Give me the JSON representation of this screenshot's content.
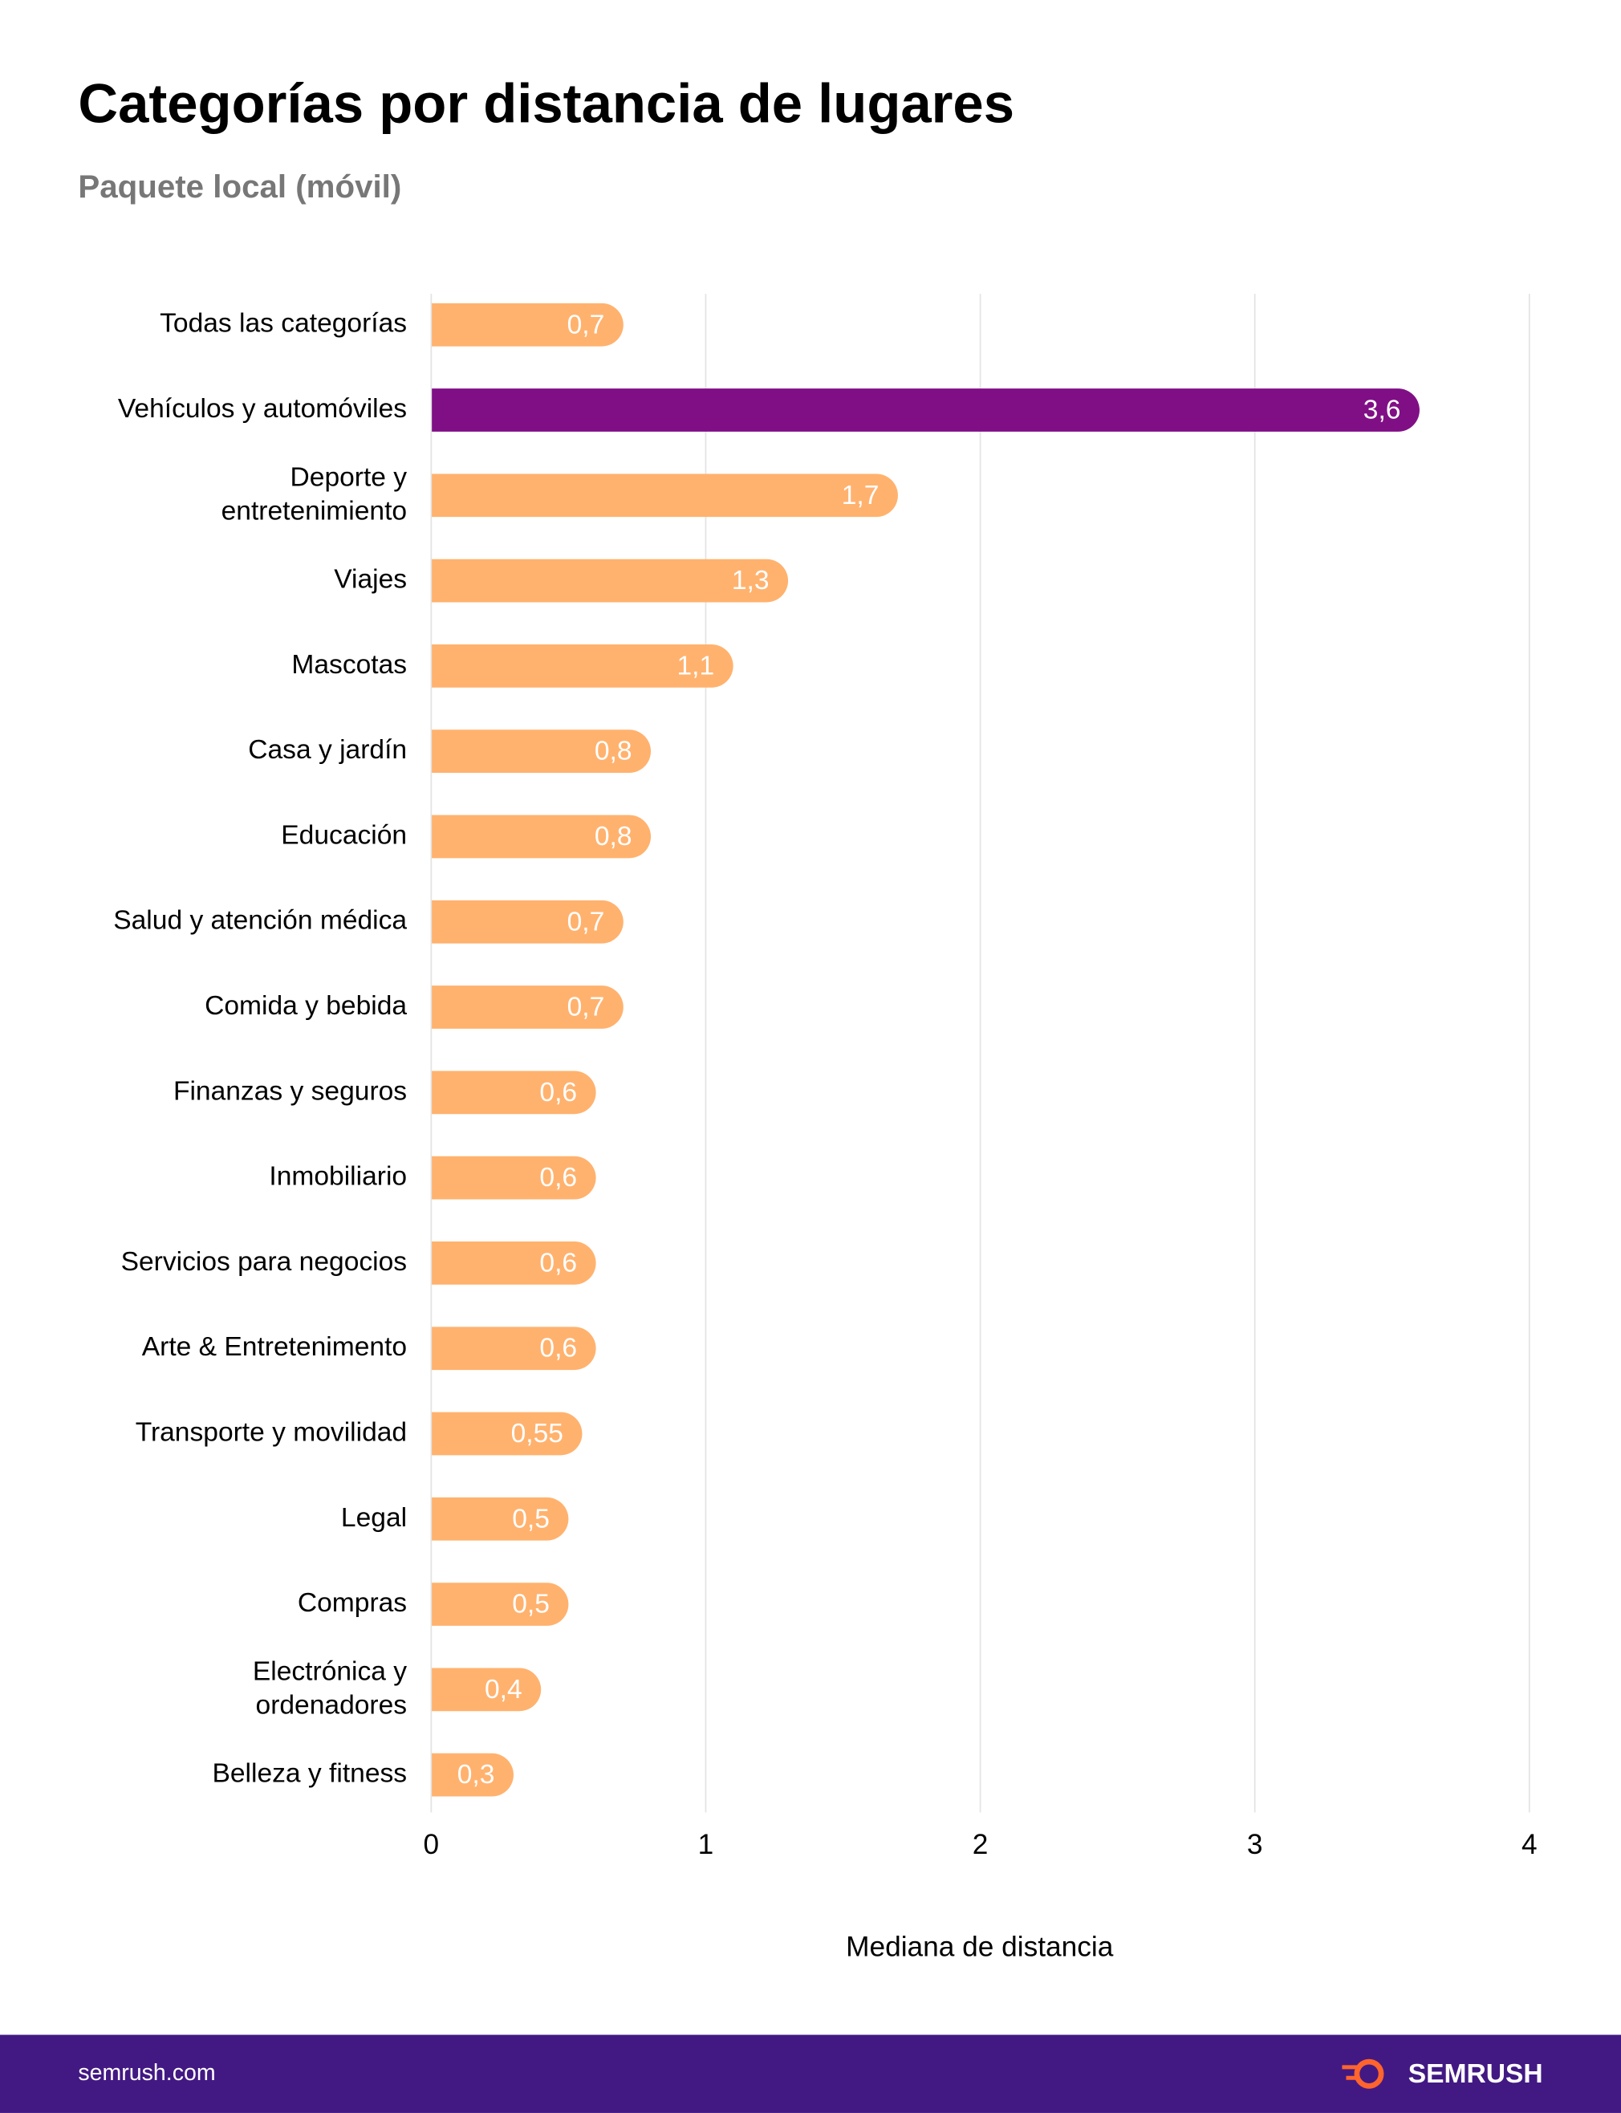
{
  "chart_data": {
    "type": "bar",
    "orientation": "horizontal",
    "title": "Categorías por distancia de lugares",
    "subtitle": "Paquete local (móvil)",
    "x_label": "Mediana de distancia",
    "categories": [
      "Todas las categorías",
      "Vehículos y automóviles",
      "Deporte y\nentretenimiento",
      "Viajes",
      "Mascotas",
      "Casa y jardín",
      "Educación",
      "Salud y atención médica",
      "Comida y bebida",
      "Finanzas y seguros",
      "Inmobiliario",
      "Servicios para negocios",
      "Arte & Entretenimento",
      "Transporte y movilidad",
      "Legal",
      "Compras",
      "Electrónica y\nordenadores",
      "Belleza y fitness"
    ],
    "values": [
      0.7,
      3.6,
      1.7,
      1.3,
      1.1,
      0.8,
      0.8,
      0.7,
      0.7,
      0.6,
      0.6,
      0.6,
      0.6,
      0.55,
      0.5,
      0.5,
      0.4,
      0.3
    ],
    "value_labels": [
      "0,7",
      "3,6",
      "1,7",
      "1,3",
      "1,1",
      "0,8",
      "0,8",
      "0,7",
      "0,7",
      "0,6",
      "0,6",
      "0,6",
      "0,6",
      "0,55",
      "0,5",
      "0,5",
      "0,4",
      "0,3"
    ],
    "colors": [
      "#ffb26e",
      "#800f86",
      "#ffb26e",
      "#ffb26e",
      "#ffb26e",
      "#ffb26e",
      "#ffb26e",
      "#ffb26e",
      "#ffb26e",
      "#ffb26e",
      "#ffb26e",
      "#ffb26e",
      "#ffb26e",
      "#ffb26e",
      "#ffb26e",
      "#ffb26e",
      "#ffb26e",
      "#ffb26e"
    ],
    "xlim": [
      0,
      4
    ],
    "xticks": [
      0,
      1,
      2,
      3,
      4
    ],
    "grid": true
  },
  "footer": {
    "url": "semrush.com",
    "brand": "SEMRUSH"
  }
}
